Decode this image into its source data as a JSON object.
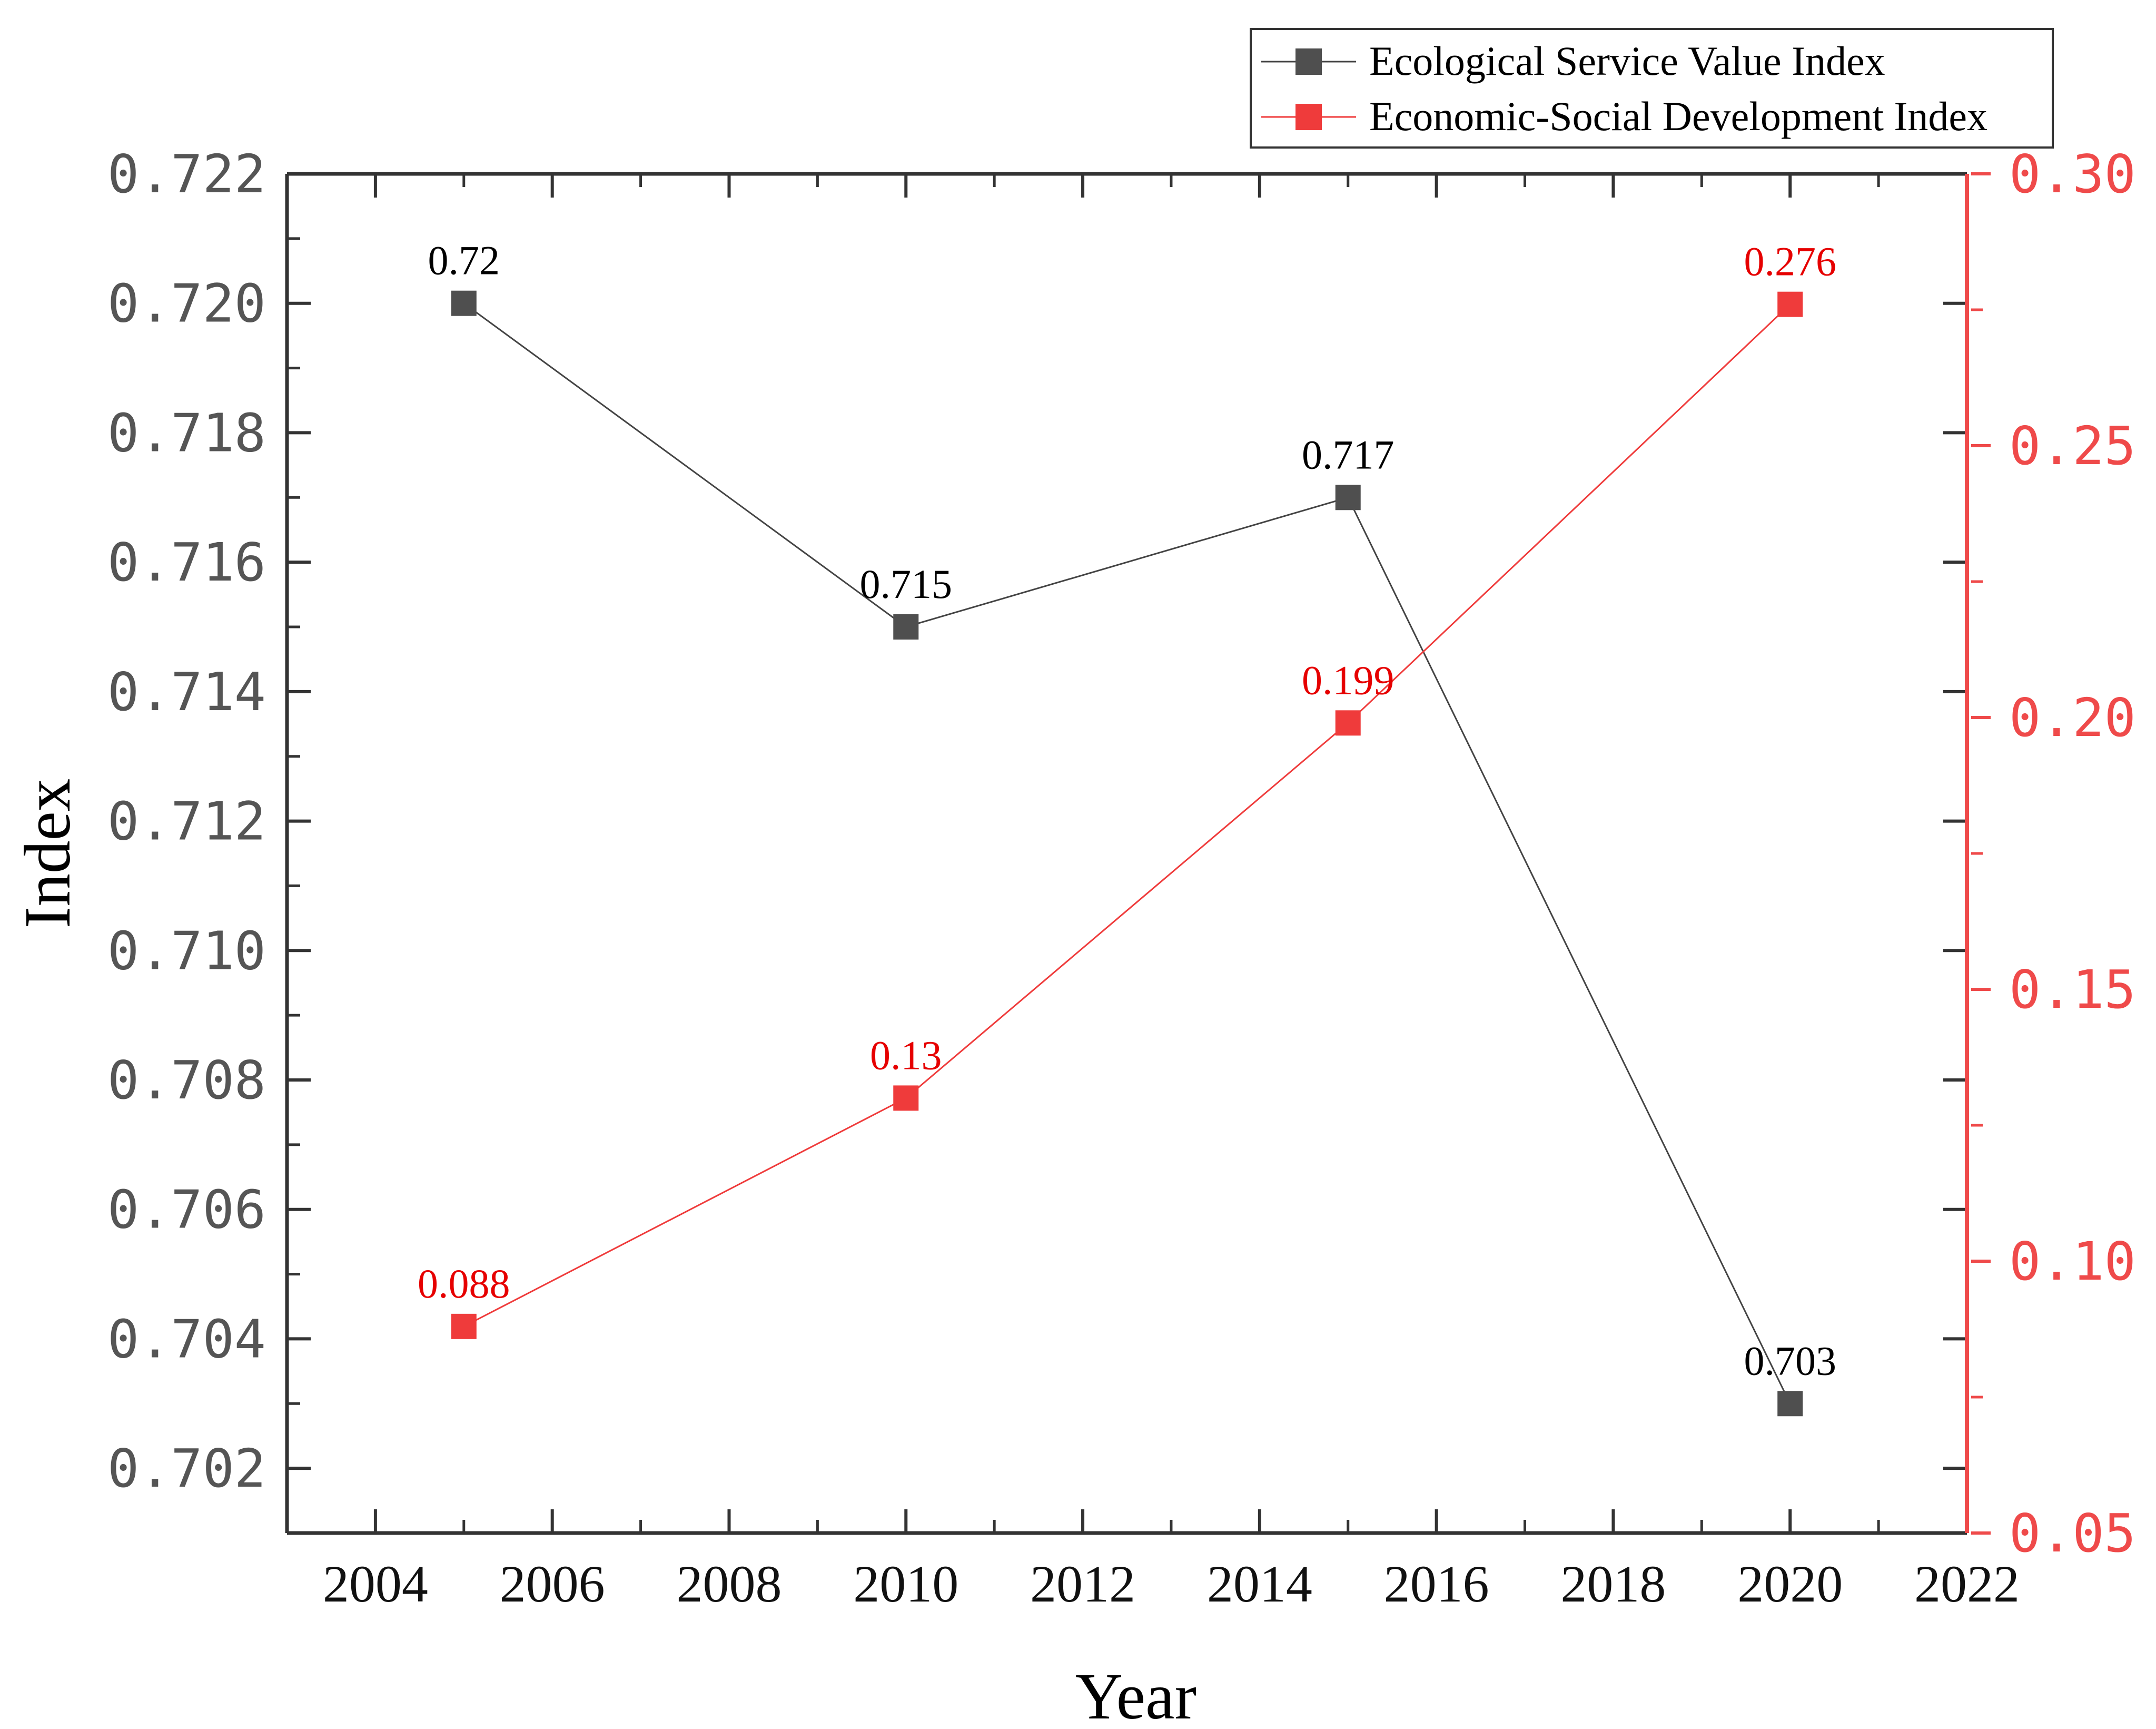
{
  "colors": {
    "eco_marker": "#4f4f4f",
    "eco_line": "#444444",
    "dev_marker": "#ef3b3b",
    "dev_line": "#ef3b3b",
    "dev_label": "#e60000",
    "right_axis": "#ef4a4a",
    "frame": "#333333"
  },
  "chart_data": {
    "type": "line",
    "xlabel": "Year",
    "ylabel": "Index",
    "x": [
      2005,
      2010,
      2015,
      2020
    ],
    "xlim": [
      2003,
      2022
    ],
    "xticks": [
      "2004",
      "2006",
      "2008",
      "2010",
      "2012",
      "2014",
      "2016",
      "2018",
      "2020",
      "2022"
    ],
    "ylim_left": [
      0.701,
      0.722
    ],
    "yticks_left": [
      "0.702",
      "0.704",
      "0.706",
      "0.708",
      "0.710",
      "0.712",
      "0.714",
      "0.716",
      "0.718",
      "0.720",
      "0.722"
    ],
    "ylim_right": [
      0.05,
      0.3
    ],
    "yticks_right": [
      "0.05",
      "0.10",
      "0.15",
      "0.20",
      "0.25",
      "0.30"
    ],
    "legend_position": "top-right",
    "grid": false,
    "series": [
      {
        "name": "Ecological Service Value Index",
        "axis": "left",
        "values": [
          0.72,
          0.715,
          0.717,
          0.703
        ],
        "labels": [
          "0.72",
          "0.715",
          "0.717",
          "0.703"
        ]
      },
      {
        "name": "Economic-Social Development Index",
        "axis": "right",
        "values": [
          0.088,
          0.13,
          0.199,
          0.276
        ],
        "labels": [
          "0.088",
          "0.13",
          "0.199",
          "0.276"
        ]
      }
    ]
  }
}
